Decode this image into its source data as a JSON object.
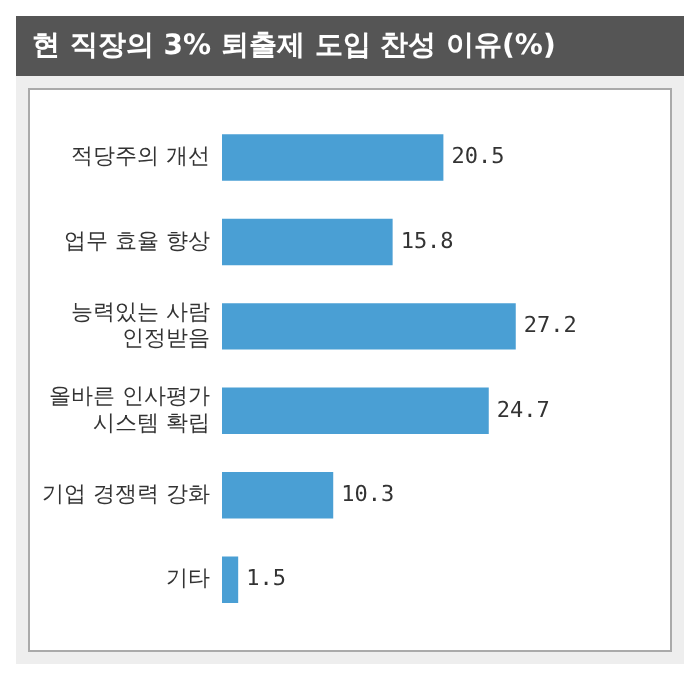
{
  "chart_data": {
    "type": "bar",
    "orientation": "horizontal",
    "title": "현 직장의 3% 퇴출제 도입 찬성 이유(%)",
    "categories": [
      "적당주의 개선",
      "업무 효율 향상",
      "능력있는 사람\n인정받음",
      "올바른 인사평가\n시스템 확립",
      "기업 경쟁력 강화",
      "기타"
    ],
    "values": [
      20.5,
      15.8,
      27.2,
      24.7,
      10.3,
      1.5
    ],
    "color": "#4a9fd4",
    "data_labels": true,
    "grid": false,
    "legend": false,
    "tick_labels": "y"
  }
}
